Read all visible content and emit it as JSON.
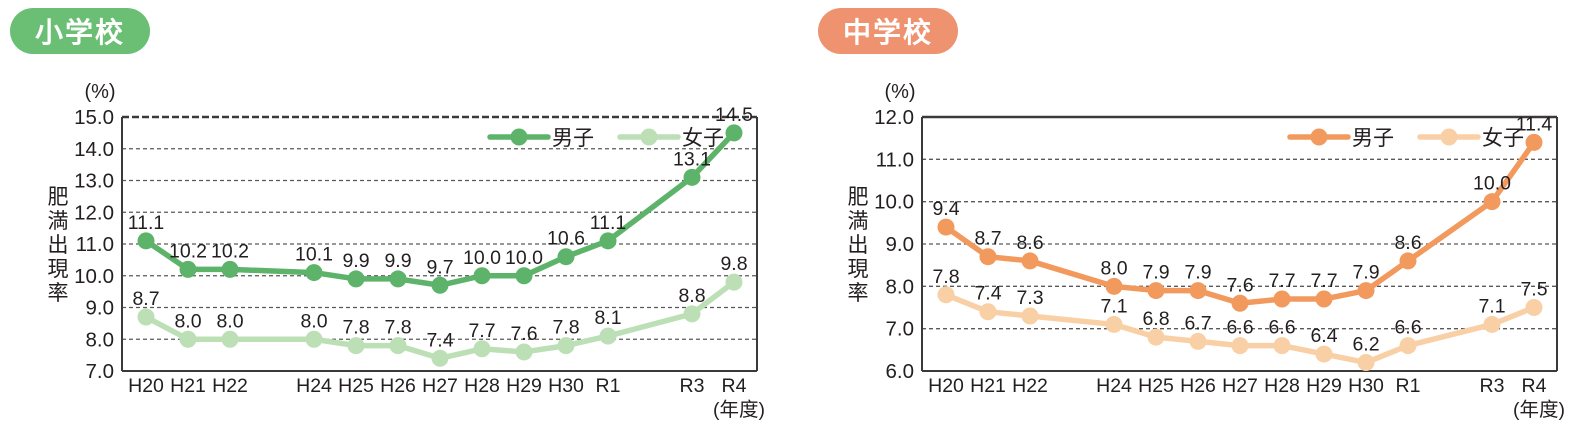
{
  "chart_data": [
    {
      "type": "line",
      "school_badge": "小学校",
      "badge_color": "#6bbf75",
      "unit_label": "(%)",
      "ylabel": "肥満出現率",
      "x_axis_unit_label": "(年度)",
      "ylim": [
        7.0,
        15.0
      ],
      "ytick_labels": [
        "15.0",
        "14.0",
        "13.0",
        "12.0",
        "11.0",
        "10.0",
        "9.0",
        "8.0",
        "7.0"
      ],
      "categories": [
        "H20",
        "H21",
        "H22",
        "H24",
        "H25",
        "H26",
        "H27",
        "H28",
        "H29",
        "H30",
        "R1",
        "R3",
        "R4"
      ],
      "slot_positions": [
        0,
        1,
        2,
        4,
        5,
        6,
        7,
        8,
        9,
        10,
        11,
        13,
        14
      ],
      "total_slots": 15,
      "grid": "dashed-horizontal",
      "legend_position": "top-right-inside",
      "top_border_style": "dashed",
      "series": [
        {
          "name": "男子",
          "color": "#5eb36b",
          "values": [
            11.1,
            10.2,
            10.2,
            10.1,
            9.9,
            9.9,
            9.7,
            10.0,
            10.0,
            10.6,
            11.1,
            13.1,
            14.5
          ]
        },
        {
          "name": "女子",
          "color": "#bcdfb6",
          "values": [
            8.7,
            8.0,
            8.0,
            8.0,
            7.8,
            7.8,
            7.4,
            7.7,
            7.6,
            7.8,
            8.1,
            8.8,
            9.8
          ]
        }
      ]
    },
    {
      "type": "line",
      "school_badge": "中学校",
      "badge_color": "#ef9270",
      "unit_label": "(%)",
      "ylabel": "肥満出現率",
      "x_axis_unit_label": "(年度)",
      "ylim": [
        6.0,
        12.0
      ],
      "ytick_labels": [
        "12.0",
        "11.0",
        "10.0",
        "9.0",
        "8.0",
        "7.0",
        "6.0"
      ],
      "categories": [
        "H20",
        "H21",
        "H22",
        "H24",
        "H25",
        "H26",
        "H27",
        "H28",
        "H29",
        "H30",
        "R1",
        "R3",
        "R4"
      ],
      "slot_positions": [
        0,
        1,
        2,
        4,
        5,
        6,
        7,
        8,
        9,
        10,
        11,
        13,
        14
      ],
      "total_slots": 15,
      "grid": "dashed-horizontal",
      "legend_position": "top-right-inside",
      "top_border_style": "solid",
      "series": [
        {
          "name": "男子",
          "color": "#f29a5e",
          "values": [
            9.4,
            8.7,
            8.6,
            8.0,
            7.9,
            7.9,
            7.6,
            7.7,
            7.7,
            7.9,
            8.6,
            10.0,
            11.4
          ]
        },
        {
          "name": "女子",
          "color": "#f9d0a6",
          "values": [
            7.8,
            7.4,
            7.3,
            7.1,
            6.8,
            6.7,
            6.6,
            6.6,
            6.4,
            6.2,
            6.6,
            7.1,
            7.5
          ]
        }
      ]
    }
  ]
}
